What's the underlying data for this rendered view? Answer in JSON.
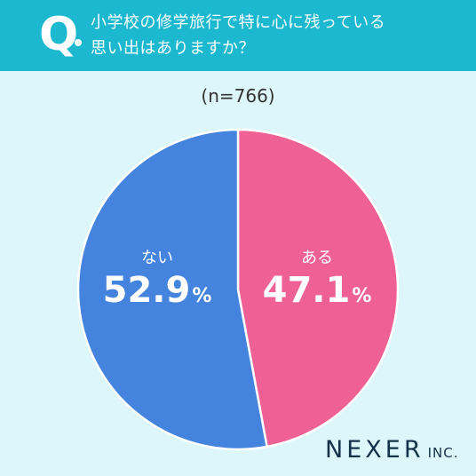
{
  "header": {
    "q_mark": "Q",
    "question_line1": "小学校の修学旅行で特に心に残っている",
    "question_line2": "思い出はありますか？"
  },
  "sample_size": "(n=766)",
  "colors": {
    "header_bg": "#1bb8cf",
    "page_bg": "#ddf6fa",
    "nai": "#4484de",
    "aru": "#ef6194"
  },
  "logo": {
    "main": "NEXER",
    "sub": "INC."
  },
  "chart_data": {
    "type": "pie",
    "unit": "%",
    "slices": [
      {
        "label": "ある",
        "value": 47.1,
        "display": "47.1",
        "color": "#ef6194"
      },
      {
        "label": "ない",
        "value": 52.9,
        "display": "52.9",
        "color": "#4484de"
      }
    ]
  }
}
